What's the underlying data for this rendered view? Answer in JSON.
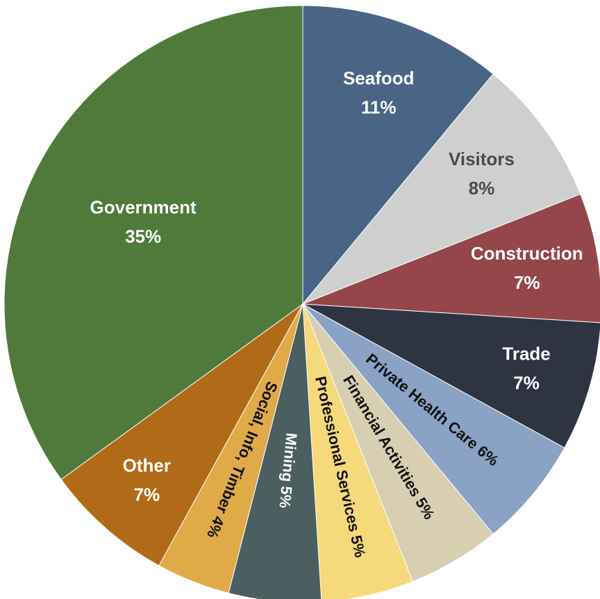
{
  "chart_data": {
    "type": "pie",
    "start_direction": "top",
    "direction": "clockwise",
    "slices": [
      {
        "name": "Seafood",
        "value": 11,
        "display": "11%",
        "color": "#4a6485",
        "text_color": "#ffffff",
        "label_mode": "stack"
      },
      {
        "name": "Visitors",
        "value": 8,
        "display": "8%",
        "color": "#cfcfcf",
        "text_color": "#4a4a4a",
        "label_mode": "stack"
      },
      {
        "name": "Construction",
        "value": 7,
        "display": "7%",
        "color": "#94464a",
        "text_color": "#ffffff",
        "label_mode": "stack"
      },
      {
        "name": "Trade",
        "value": 7,
        "display": "7%",
        "color": "#2f3442",
        "text_color": "#ffffff",
        "label_mode": "stack"
      },
      {
        "name": "Private Health Care",
        "value": 6,
        "display": "6%",
        "color": "#8aa2c4",
        "text_color": "#111111",
        "label_mode": "radial"
      },
      {
        "name": "Financial Activities",
        "value": 5,
        "display": "5%",
        "color": "#d8ceb2",
        "text_color": "#111111",
        "label_mode": "radial"
      },
      {
        "name": "Professional Services",
        "value": 5,
        "display": "5%",
        "color": "#f5d97a",
        "text_color": "#111111",
        "label_mode": "radial"
      },
      {
        "name": "Mining",
        "value": 5,
        "display": "5%",
        "color": "#4b5e60",
        "text_color": "#ffffff",
        "label_mode": "radial"
      },
      {
        "name": "Social, Info, Timber",
        "value": 4,
        "display": "4%",
        "color": "#e0aa48",
        "text_color": "#111111",
        "label_mode": "radial"
      },
      {
        "name": "Other",
        "value": 7,
        "display": "7%",
        "color": "#b06a18",
        "text_color": "#ffffff",
        "label_mode": "stack"
      },
      {
        "name": "Government",
        "value": 35,
        "display": "35%",
        "color": "#4f7a3c",
        "text_color": "#ffffff",
        "label_mode": "stack"
      }
    ]
  }
}
